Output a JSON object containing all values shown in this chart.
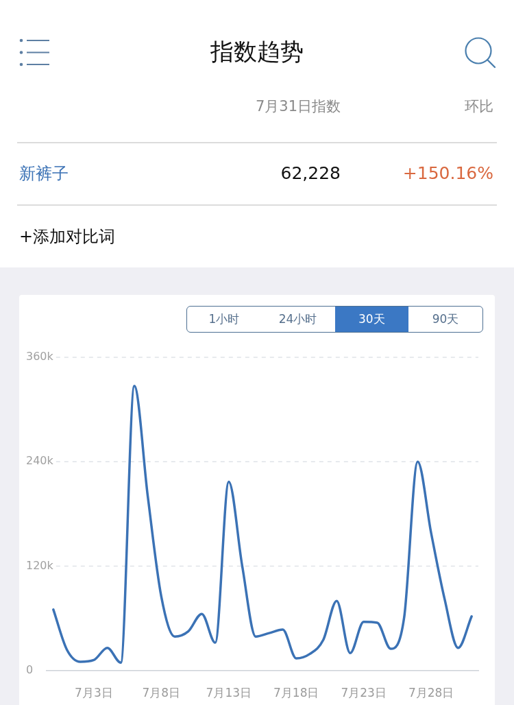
{
  "chart_data": {
    "type": "line",
    "title": "指数趋势",
    "categories": [
      null,
      null,
      null,
      "7月3日",
      null,
      null,
      null,
      null,
      "7月8日",
      null,
      null,
      null,
      null,
      "7月13日",
      null,
      null,
      null,
      null,
      "7月18日",
      null,
      null,
      null,
      null,
      "7月23日",
      null,
      null,
      null,
      null,
      "7月28日",
      null,
      null,
      null
    ],
    "series": [
      {
        "name": "新裤子",
        "color": "#3b72b5",
        "values": [
          70000,
          24000,
          10000,
          12000,
          26000,
          9000,
          327000,
          200000,
          85000,
          39000,
          45000,
          65000,
          32000,
          217000,
          120000,
          39000,
          43000,
          47000,
          14000,
          19000,
          35000,
          80000,
          20000,
          56000,
          55000,
          25000,
          61000,
          240000,
          158000,
          82000,
          26000,
          62228
        ]
      }
    ],
    "ylim": [
      0,
      360000
    ],
    "yticks": [
      0,
      {
        "value": 120000,
        "label": "120k"
      },
      {
        "value": 240000,
        "label": "240k"
      },
      {
        "value": 360000,
        "label": "360k"
      }
    ],
    "grid": "y",
    "annotations": [
      "7月31日指数",
      "环比",
      "62,228",
      "+150.16%",
      "+添加对比词",
      "1小时",
      "24小时",
      "30天",
      "90天"
    ]
  }
}
